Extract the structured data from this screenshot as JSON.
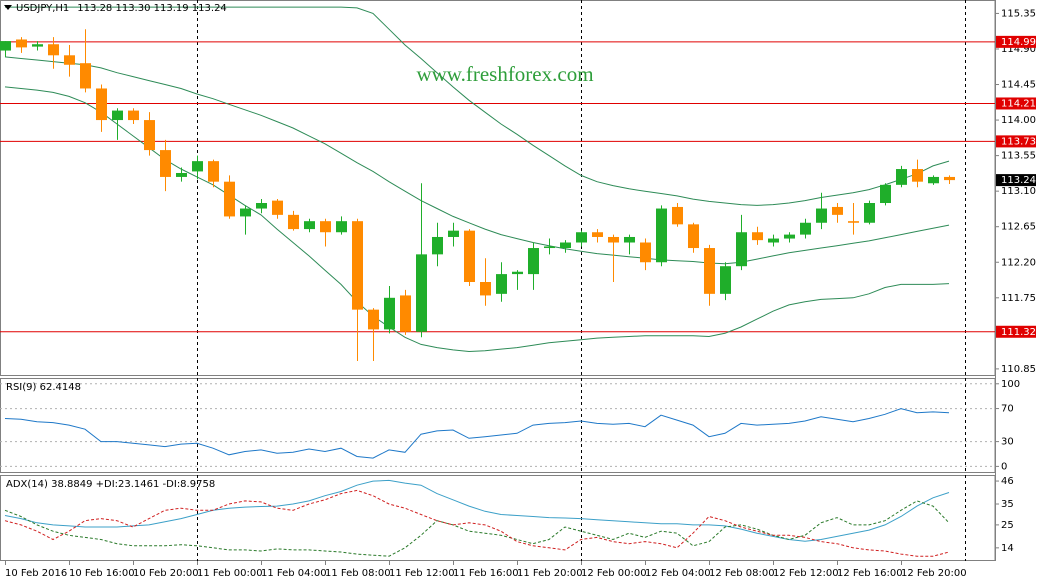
{
  "chart_data": [
    {
      "type": "candlestick",
      "title": "USDJPY,H1",
      "subtitle": "113.28 113.30 113.19 113.24",
      "annotation": "www.freshforex.com",
      "up_color": "#1fae2a",
      "down_color": "#ff8a00",
      "open": [
        114.88,
        115.02,
        114.93,
        114.96,
        114.82,
        114.72,
        114.4,
        114.0,
        114.12,
        114.0,
        113.62,
        113.28,
        113.35,
        113.48,
        113.22,
        112.78,
        112.88,
        112.98,
        112.8,
        112.62,
        112.72,
        112.58,
        112.72,
        111.6,
        111.35,
        111.78,
        111.32,
        112.3,
        112.52,
        112.6,
        111.95,
        111.8,
        112.05,
        112.05,
        112.38,
        112.38,
        112.45,
        112.58,
        112.52,
        112.45,
        112.45,
        112.2,
        112.9,
        112.68,
        112.38,
        111.8,
        112.15,
        112.58,
        112.45,
        112.5,
        112.55,
        112.7,
        112.9,
        112.72,
        112.7,
        112.95,
        113.18,
        113.38,
        113.2,
        113.28
      ],
      "high": [
        115.0,
        115.05,
        115.0,
        115.05,
        114.95,
        115.15,
        114.45,
        114.15,
        114.15,
        114.1,
        113.75,
        113.4,
        113.55,
        113.5,
        113.3,
        112.92,
        113.0,
        113.0,
        112.85,
        112.75,
        112.75,
        112.78,
        112.75,
        111.62,
        111.9,
        111.85,
        113.2,
        112.7,
        112.7,
        112.62,
        112.25,
        112.2,
        112.1,
        112.45,
        112.5,
        112.48,
        112.6,
        112.62,
        112.55,
        112.55,
        112.5,
        112.92,
        112.95,
        112.7,
        112.42,
        112.2,
        112.8,
        112.65,
        112.55,
        112.58,
        112.75,
        113.08,
        112.95,
        112.95,
        112.98,
        113.2,
        113.42,
        113.5,
        113.3,
        113.3
      ],
      "low": [
        114.8,
        114.85,
        114.88,
        114.65,
        114.55,
        114.35,
        113.85,
        113.75,
        113.95,
        113.55,
        113.1,
        113.22,
        113.25,
        113.15,
        112.75,
        112.55,
        112.82,
        112.75,
        112.6,
        112.58,
        112.4,
        112.55,
        110.95,
        110.95,
        111.3,
        111.28,
        111.25,
        112.15,
        112.4,
        111.9,
        111.65,
        111.7,
        111.85,
        111.85,
        112.3,
        112.32,
        112.4,
        112.45,
        111.95,
        112.3,
        112.1,
        112.15,
        112.65,
        112.32,
        111.65,
        111.72,
        112.1,
        112.42,
        112.4,
        112.45,
        112.5,
        112.62,
        112.7,
        112.55,
        112.68,
        112.92,
        113.15,
        113.15,
        113.18,
        113.19
      ],
      "close": [
        115.0,
        114.92,
        114.96,
        114.82,
        114.7,
        114.4,
        114.0,
        114.12,
        114.0,
        113.62,
        113.28,
        113.33,
        113.48,
        113.22,
        112.78,
        112.88,
        112.95,
        112.8,
        112.62,
        112.72,
        112.58,
        112.72,
        111.6,
        111.35,
        111.75,
        111.32,
        112.3,
        112.52,
        112.6,
        111.95,
        111.78,
        112.05,
        112.08,
        112.38,
        112.4,
        112.45,
        112.58,
        112.52,
        112.45,
        112.52,
        112.2,
        112.88,
        112.68,
        112.38,
        111.8,
        112.15,
        112.58,
        112.48,
        112.5,
        112.55,
        112.7,
        112.88,
        112.8,
        112.7,
        112.95,
        113.18,
        113.38,
        113.22,
        113.28,
        113.24
      ],
      "overlays": [
        {
          "color": "#2e8b57",
          "values": [
            115.43,
            115.43,
            115.43,
            115.43,
            115.43,
            115.43,
            115.43,
            115.43,
            115.43,
            115.43,
            115.43,
            115.43,
            115.43,
            115.43,
            115.43,
            115.43,
            115.43,
            115.43,
            115.43,
            115.43,
            115.43,
            115.43,
            115.42,
            115.35,
            115.15,
            114.95,
            114.78,
            114.6,
            114.42,
            114.25,
            114.1,
            113.95,
            113.82,
            113.68,
            113.55,
            113.42,
            113.3,
            113.22,
            113.17,
            113.13,
            113.1,
            113.07,
            113.04,
            113.0,
            112.97,
            112.95,
            112.93,
            112.92,
            112.93,
            112.95,
            112.98,
            113.02,
            113.05,
            113.08,
            113.12,
            113.18,
            113.25,
            113.32,
            113.42,
            113.48
          ]
        },
        {
          "color": "#2e8b57",
          "values": [
            114.8,
            114.78,
            114.76,
            114.74,
            114.72,
            114.7,
            114.66,
            114.6,
            114.55,
            114.5,
            114.45,
            114.4,
            114.33,
            114.27,
            114.2,
            114.13,
            114.06,
            113.98,
            113.9,
            113.8,
            113.7,
            113.58,
            113.46,
            113.35,
            113.22,
            113.1,
            112.98,
            112.88,
            112.78,
            112.7,
            112.62,
            112.55,
            112.5,
            112.45,
            112.41,
            112.37,
            112.34,
            112.31,
            112.29,
            112.27,
            112.25,
            112.23,
            112.22,
            112.21,
            112.19,
            112.18,
            112.2,
            112.24,
            112.28,
            112.32,
            112.35,
            112.38,
            112.41,
            112.44,
            112.47,
            112.51,
            112.55,
            112.59,
            112.63,
            112.67
          ]
        },
        {
          "color": "#2e8b57",
          "values": [
            114.42,
            114.4,
            114.38,
            114.35,
            114.3,
            114.22,
            114.1,
            113.95,
            113.8,
            113.65,
            113.5,
            113.38,
            113.28,
            113.18,
            113.05,
            112.92,
            112.8,
            112.62,
            112.45,
            112.28,
            112.1,
            111.92,
            111.7,
            111.52,
            111.38,
            111.25,
            111.16,
            111.12,
            111.09,
            111.07,
            111.08,
            111.1,
            111.12,
            111.15,
            111.18,
            111.2,
            111.22,
            111.24,
            111.25,
            111.26,
            111.27,
            111.27,
            111.27,
            111.27,
            111.26,
            111.3,
            111.38,
            111.48,
            111.58,
            111.66,
            111.7,
            111.73,
            111.74,
            111.75,
            111.8,
            111.88,
            111.92,
            111.92,
            111.92,
            111.93
          ]
        }
      ],
      "levels": [
        114.99,
        114.21,
        113.73,
        111.32
      ],
      "level_color": "#e00000",
      "ylim": [
        110.76,
        115.52
      ],
      "yticks": [
        115.35,
        {
          "value": 114.9,
          "label": "114.90"
        },
        114.45,
        {
          "value": 114,
          "label": "114.00"
        },
        113.55,
        {
          "value": 113.1,
          "label": "113.10"
        },
        112.65,
        {
          "value": 112.2,
          "label": "112.20"
        },
        111.75,
        {
          "value": 111.3,
          "label": "111.30"
        },
        110.85
      ],
      "grid": false
    },
    {
      "type": "line",
      "title": "RSI(9) 62.4148",
      "series": [
        {
          "color": "#1e78c8",
          "values": [
            58,
            57,
            54,
            53,
            50,
            45,
            30,
            30,
            28,
            26,
            24,
            27,
            28,
            22,
            14,
            18,
            20,
            16,
            17,
            21,
            18,
            22,
            12,
            10,
            20,
            17,
            39,
            43,
            44,
            34,
            36,
            38,
            40,
            50,
            52,
            53,
            55,
            52,
            51,
            52,
            48,
            62,
            56,
            50,
            36,
            40,
            52,
            50,
            51,
            52,
            55,
            60,
            57,
            54,
            58,
            63,
            70,
            65,
            66,
            65
          ]
        }
      ],
      "ylim": [
        -8,
        107
      ],
      "yticks": [
        100,
        70,
        30,
        0
      ],
      "grid": true
    },
    {
      "type": "line",
      "title": "ADX(14) 38.8849 +DI:23.1461 -DI:8.9758",
      "categories": [
        "10 Feb 2016",
        null,
        null,
        null,
        "10 Feb 16:00",
        null,
        null,
        null,
        "10 Feb 20:00",
        null,
        null,
        null,
        "11 Feb 00:00",
        null,
        null,
        null,
        "11 Feb 04:00",
        null,
        null,
        null,
        "11 Feb 08:00",
        null,
        null,
        null,
        "11 Feb 12:00",
        null,
        null,
        null,
        "11 Feb 16:00",
        null,
        null,
        null,
        "11 Feb 20:00",
        null,
        null,
        null,
        "12 Feb 00:00",
        null,
        null,
        null,
        "12 Feb 04:00",
        null,
        null,
        null,
        "12 Feb 08:00",
        null,
        null,
        null,
        "12 Feb 12:00",
        null,
        null,
        null,
        "12 Feb 16:00",
        null,
        null,
        null,
        "12 Feb 20:00",
        null,
        null,
        null
      ],
      "series": [
        {
          "color": "#3ca0c8",
          "dash": false,
          "values": [
            29.5,
            28,
            26,
            25,
            24.5,
            24,
            24,
            24,
            24.5,
            25,
            26.5,
            28,
            30,
            32,
            33,
            33.5,
            33.8,
            34,
            35,
            36.5,
            39,
            41,
            44,
            46,
            46.3,
            45,
            44,
            40,
            37,
            34,
            31.5,
            30,
            29.5,
            29,
            28.5,
            28.3,
            28,
            27.5,
            27,
            26.5,
            26,
            25.5,
            25.5,
            25,
            25,
            24.5,
            23,
            21,
            19.5,
            18,
            17.2,
            18,
            19.5,
            21,
            22.5,
            25,
            29,
            34,
            38,
            40.5
          ]
        },
        {
          "color": "#2a7a2a",
          "dash": true,
          "values": [
            32,
            29,
            25,
            22,
            20,
            19,
            18,
            16,
            15,
            15,
            15,
            15.5,
            15,
            14,
            13,
            13,
            12.5,
            13.5,
            13,
            13,
            12.5,
            12,
            11,
            10.5,
            10,
            14,
            20,
            27,
            25,
            22,
            21,
            20,
            18,
            16,
            18,
            24,
            22,
            20,
            18,
            21,
            19,
            22,
            21,
            15,
            17,
            24,
            25,
            23,
            20,
            18,
            20,
            26,
            28.5,
            25,
            25,
            27,
            32,
            36.5,
            34,
            26
          ]
        },
        {
          "color": "#d02020",
          "dash": true,
          "values": [
            27,
            25,
            22,
            18,
            22,
            27,
            28,
            27,
            24,
            28,
            32,
            33,
            32,
            32,
            35,
            36.5,
            36,
            33,
            32,
            35,
            37,
            40,
            41.5,
            39,
            35,
            33,
            30,
            27,
            25,
            26,
            25,
            22,
            17,
            15,
            14,
            13,
            18,
            19,
            17,
            16,
            17,
            16,
            14,
            21,
            29,
            27,
            24,
            22,
            20,
            20,
            19,
            17,
            16,
            14,
            13,
            12.5,
            11,
            10,
            10,
            12
          ]
        }
      ],
      "ylim": [
        7.7,
        48.9
      ],
      "yticks": [
        46,
        35,
        25,
        14
      ],
      "grid": false
    }
  ]
}
